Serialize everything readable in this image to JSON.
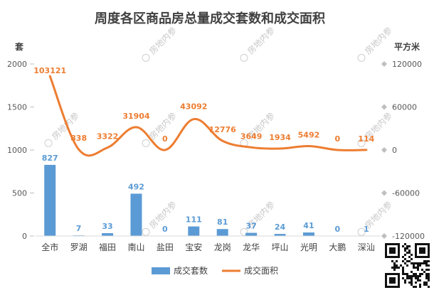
{
  "chart_data": {
    "type": "bar",
    "title": "周度各区商品房总量成交套数和成交面积",
    "left_unit": "套",
    "right_unit": "平方米",
    "categories": [
      "全市",
      "罗湖",
      "福田",
      "南山",
      "盐田",
      "宝安",
      "龙岗",
      "龙华",
      "坪山",
      "光明",
      "大鹏",
      "深汕"
    ],
    "left_axis": {
      "ylim": [
        0,
        2000
      ],
      "ticks": [
        "0",
        "500",
        "1000",
        "1500",
        "2000"
      ]
    },
    "right_axis": {
      "ylim": [
        -120000,
        120000
      ],
      "ticks": [
        "-120000",
        "-60000",
        "0",
        "60000",
        "120000"
      ]
    },
    "series": [
      {
        "name": "成交套数",
        "kind": "bar",
        "axis": "left",
        "color": "#5b9bd5",
        "values": [
          827,
          7,
          33,
          492,
          0,
          111,
          81,
          37,
          24,
          41,
          0,
          1
        ],
        "labels": [
          "827",
          "7",
          "33",
          "492",
          "0",
          "111",
          "81",
          "37",
          "24",
          "41",
          "0",
          "1"
        ]
      },
      {
        "name": "成交面积",
        "kind": "line",
        "axis": "right",
        "color": "#ed7d31",
        "values": [
          103121,
          838,
          3322,
          31904,
          0,
          43092,
          12776,
          3649,
          1934,
          5492,
          0,
          114
        ],
        "labels": [
          "103121",
          "838",
          "3322",
          "31904",
          "0",
          "43092",
          "12776",
          "3649",
          "1934",
          "5492",
          "0",
          "114"
        ]
      }
    ],
    "legend_position": "bottom",
    "watermark": "房地内参"
  },
  "colors": {
    "bar": "#5b9bd5",
    "line": "#ed7d31",
    "text": "#404040",
    "tick": "#595959"
  }
}
